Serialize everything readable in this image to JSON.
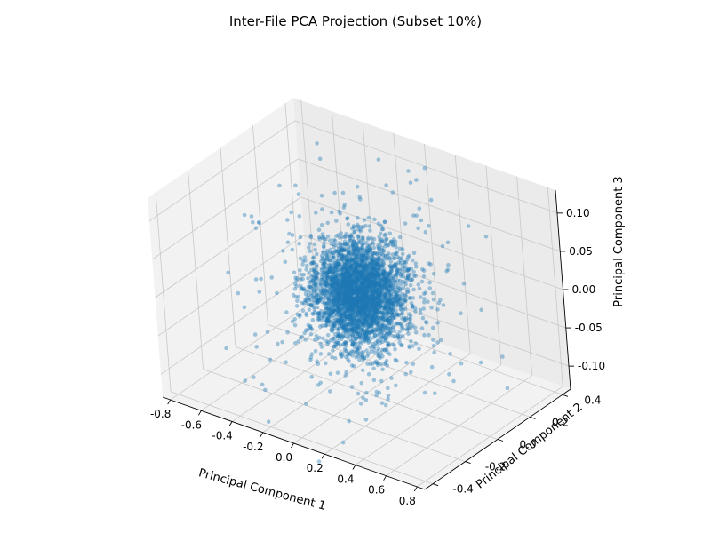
{
  "chart_data": {
    "type": "scatter",
    "projection": "3d",
    "title": "Inter-File PCA Projection (Subset 10%)",
    "xlabel": "Principal Component 1",
    "ylabel": "Principal Component 2",
    "zlabel": "Principal Component 3",
    "xlim": [
      -0.85,
      0.85
    ],
    "ylim": [
      -0.45,
      0.45
    ],
    "zlim": [
      -0.13,
      0.13
    ],
    "x_ticks": [
      "-0.8",
      "-0.6",
      "-0.4",
      "-0.2",
      "0.0",
      "0.2",
      "0.4",
      "0.6",
      "0.8"
    ],
    "y_ticks": [
      "-0.4",
      "-0.2",
      "0.0",
      "0.2",
      "0.4"
    ],
    "z_ticks": [
      "-0.10",
      "-0.05",
      "0.00",
      "0.05",
      "0.10"
    ],
    "grid": true,
    "marker_color": "#1f77b4",
    "marker_alpha": 0.4,
    "distribution": {
      "center": [
        0.0,
        0.0,
        0.0
      ],
      "spread": [
        0.12,
        0.08,
        0.03
      ],
      "approx_point_count": 3500,
      "outliers": [
        [
          -0.78,
          0.05,
          0.04
        ],
        [
          -0.72,
          0.08,
          0.03
        ],
        [
          -0.65,
          -0.02,
          0.05
        ],
        [
          -0.55,
          0.12,
          0.02
        ],
        [
          0.62,
          -0.15,
          -0.03
        ],
        [
          0.7,
          -0.1,
          -0.05
        ],
        [
          0.55,
          0.2,
          -0.08
        ],
        [
          0.48,
          -0.3,
          -0.06
        ],
        [
          0.3,
          -0.38,
          -0.09
        ],
        [
          -0.2,
          0.35,
          0.11
        ],
        [
          0.05,
          0.3,
          0.12
        ],
        [
          -0.35,
          -0.3,
          -0.1
        ],
        [
          0.4,
          0.32,
          0.07
        ],
        [
          -0.45,
          0.25,
          -0.05
        ],
        [
          0.15,
          -0.4,
          0.06
        ]
      ]
    }
  }
}
